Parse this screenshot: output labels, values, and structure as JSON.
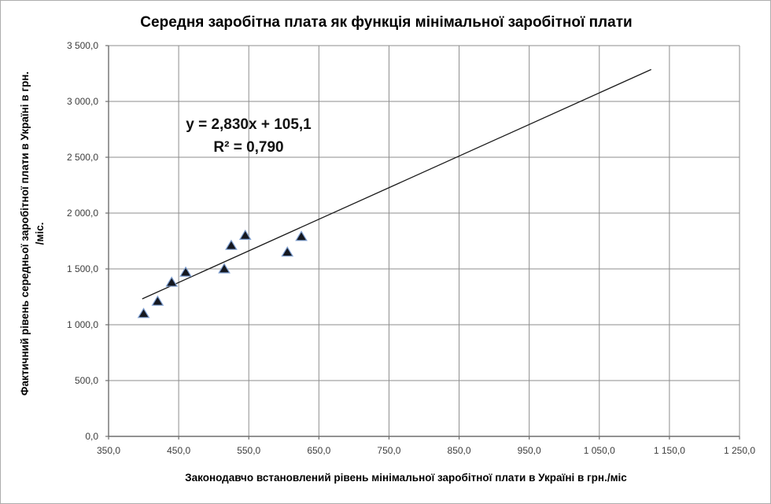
{
  "chart_data": {
    "type": "scatter",
    "title": "Середня заробітна плата як функція мінімальної заробітної плати",
    "xlabel": "Законодавчо встановлений рівень мінімальної заробітної плати в Україні в грн./міс",
    "ylabel_line1": "Фактичний рівень середньої заробітної плати в Україні в грн.",
    "ylabel_line2": "/міс.",
    "points": [
      [
        400,
        1100
      ],
      [
        420,
        1210
      ],
      [
        440,
        1380
      ],
      [
        460,
        1470
      ],
      [
        515,
        1500
      ],
      [
        525,
        1710
      ],
      [
        545,
        1800
      ],
      [
        605,
        1650
      ],
      [
        625,
        1790
      ]
    ],
    "trendline": {
      "slope": 2.83,
      "intercept": 105.1,
      "x_start": 398,
      "x_end": 1124,
      "equation_label": "y = 2,830x + 105,1",
      "r2_label": "R² = 0,790"
    },
    "xlim": [
      350,
      1250
    ],
    "ylim": [
      0,
      3500
    ],
    "xtick_step": 100,
    "ytick_step": 500,
    "xtick_labels": [
      "350,0",
      "450,0",
      "550,0",
      "650,0",
      "750,0",
      "850,0",
      "950,0",
      "1 050,0",
      "1 150,0",
      "1 250,0"
    ],
    "ytick_labels": [
      "0,0",
      "500,0",
      "1 000,0",
      "1 500,0",
      "2 000,0",
      "2 500,0",
      "3 000,0",
      "3 500,0"
    ],
    "grid": true,
    "legend": "none",
    "marker": "triangle",
    "colors": {
      "marker_fill": "#151820",
      "marker_stroke": "#7f9fd0",
      "gridline": "#8e8e8e",
      "axis": "#6f6f6f",
      "trendline": "#1a1a1a",
      "tick_text": "#3d3d3d",
      "title_text": "#000000"
    }
  }
}
